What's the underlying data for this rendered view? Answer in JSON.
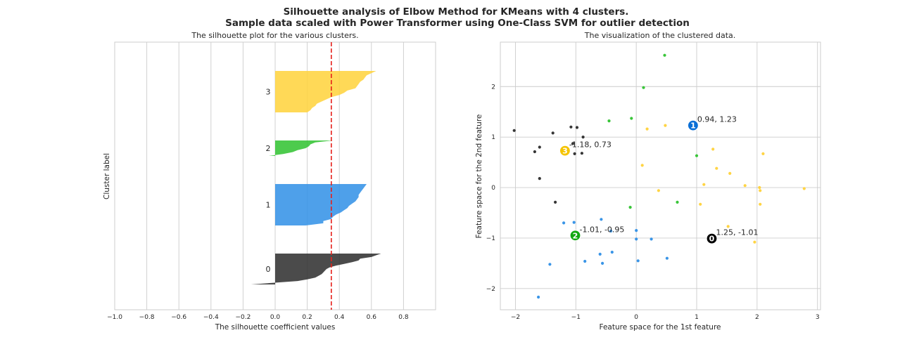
{
  "suptitle_line1": "Silhouette analysis of Elbow Method for KMeans with 4 clusters.",
  "suptitle_line2": "Sample data scaled with Power Transformer using One-Class SVM for outlier detection",
  "colors": {
    "cluster_0": "#2b2b2b",
    "cluster_1": "#2f8fe6",
    "cluster_2": "#2ec22e",
    "cluster_3": "#ffd23a",
    "avg_line": "#e6201a",
    "center_0": "#000000",
    "center_1": "#0a6fd6",
    "center_2": "#12a812",
    "center_3": "#f5c400"
  },
  "chart_data": [
    {
      "type": "area",
      "title": "The silhouette plot for the various clusters.",
      "xlabel": "The silhouette coefficient values",
      "ylabel": "Cluster label",
      "xlim": [
        -1.0,
        1.0
      ],
      "xticks": [
        "−1.0",
        "−0.8",
        "−0.6",
        "−0.4",
        "−0.2",
        "0.0",
        "0.2",
        "0.4",
        "0.6",
        "0.8"
      ],
      "grid": true,
      "average_silhouette": 0.35,
      "clusters": [
        {
          "label": "0",
          "values": [
            0.66,
            0.63,
            0.6,
            0.53,
            0.52,
            0.48,
            0.43,
            0.38,
            0.34,
            0.32,
            0.31,
            0.3,
            0.29,
            0.27,
            0.25,
            0.2,
            0.14,
            -0.01,
            -0.15
          ]
        },
        {
          "label": "1",
          "values": [
            0.57,
            0.56,
            0.55,
            0.54,
            0.53,
            0.52,
            0.52,
            0.51,
            0.5,
            0.48,
            0.46,
            0.45,
            0.43,
            0.41,
            0.38,
            0.36,
            0.35,
            0.3,
            0.3,
            0.19
          ]
        },
        {
          "label": "2",
          "values": [
            0.36,
            0.25,
            0.22,
            0.21,
            0.19,
            0.14,
            0.11,
            0.05,
            -0.04
          ]
        },
        {
          "label": "3",
          "values": [
            0.63,
            0.6,
            0.57,
            0.56,
            0.55,
            0.53,
            0.52,
            0.51,
            0.5,
            0.45,
            0.43,
            0.4,
            0.35,
            0.32,
            0.29,
            0.26,
            0.25,
            0.23,
            0.22,
            0.2
          ]
        }
      ]
    },
    {
      "type": "scatter",
      "title": "The visualization of the clustered data.",
      "xlabel": "Feature space for the 1st feature",
      "ylabel": "Feature space for the 2nd feature",
      "xlim": [
        -2.25,
        3.05
      ],
      "ylim": [
        -2.42,
        2.88
      ],
      "xticks": [
        "−2",
        "−1",
        "0",
        "1",
        "2",
        "3"
      ],
      "yticks": [
        "−2",
        "−1",
        "0",
        "1",
        "2"
      ],
      "grid": true,
      "series": [
        {
          "cluster": "0",
          "points": [
            [
              -2.02,
              1.13
            ],
            [
              -1.38,
              1.08
            ],
            [
              -1.08,
              1.2
            ],
            [
              -0.98,
              1.19
            ],
            [
              -0.88,
              1.0
            ],
            [
              -1.05,
              0.87
            ],
            [
              -1.6,
              0.8
            ],
            [
              -1.68,
              0.71
            ],
            [
              -1.02,
              0.67
            ],
            [
              -0.9,
              0.68
            ],
            [
              -1.6,
              0.18
            ],
            [
              -1.34,
              -0.29
            ]
          ]
        },
        {
          "cluster": "1",
          "points": [
            [
              -1.2,
              -0.7
            ],
            [
              -1.03,
              -0.69
            ],
            [
              -0.58,
              -0.63
            ],
            [
              0.0,
              -0.85
            ],
            [
              -0.42,
              -0.86
            ],
            [
              0.0,
              -1.02
            ],
            [
              0.25,
              -1.02
            ],
            [
              -0.6,
              -1.32
            ],
            [
              -0.4,
              -1.28
            ],
            [
              0.51,
              -1.4
            ],
            [
              0.03,
              -1.45
            ],
            [
              -0.85,
              -1.46
            ],
            [
              -0.56,
              -1.5
            ],
            [
              -1.43,
              -1.52
            ],
            [
              -1.62,
              -2.17
            ]
          ]
        },
        {
          "cluster": "2",
          "points": [
            [
              0.47,
              2.62
            ],
            [
              0.12,
              1.98
            ],
            [
              -0.08,
              1.37
            ],
            [
              -0.45,
              1.32
            ],
            [
              1.0,
              0.63
            ],
            [
              0.68,
              -0.29
            ],
            [
              -0.1,
              -0.39
            ]
          ]
        },
        {
          "cluster": "3",
          "points": [
            [
              0.48,
              1.23
            ],
            [
              0.18,
              1.16
            ],
            [
              1.27,
              0.76
            ],
            [
              2.1,
              0.67
            ],
            [
              0.1,
              0.44
            ],
            [
              1.33,
              0.38
            ],
            [
              1.55,
              0.28
            ],
            [
              1.12,
              0.06
            ],
            [
              1.8,
              0.04
            ],
            [
              2.04,
              0.0
            ],
            [
              2.78,
              -0.02
            ],
            [
              2.05,
              -0.06
            ],
            [
              0.37,
              -0.06
            ],
            [
              1.06,
              -0.33
            ],
            [
              2.05,
              -0.33
            ],
            [
              1.52,
              -0.77
            ],
            [
              1.96,
              -1.08
            ]
          ]
        }
      ],
      "centers": [
        {
          "label": "0",
          "x": 1.25,
          "y": -1.01,
          "text": "1.25, -1.01"
        },
        {
          "label": "1",
          "x": 0.94,
          "y": 1.23,
          "text": "0.94, 1.23"
        },
        {
          "label": "2",
          "x": -1.01,
          "y": -0.95,
          "text": "-1.01, -0.95"
        },
        {
          "label": "3",
          "x": -1.18,
          "y": 0.73,
          "text": "-1.18, 0.73"
        }
      ]
    }
  ]
}
